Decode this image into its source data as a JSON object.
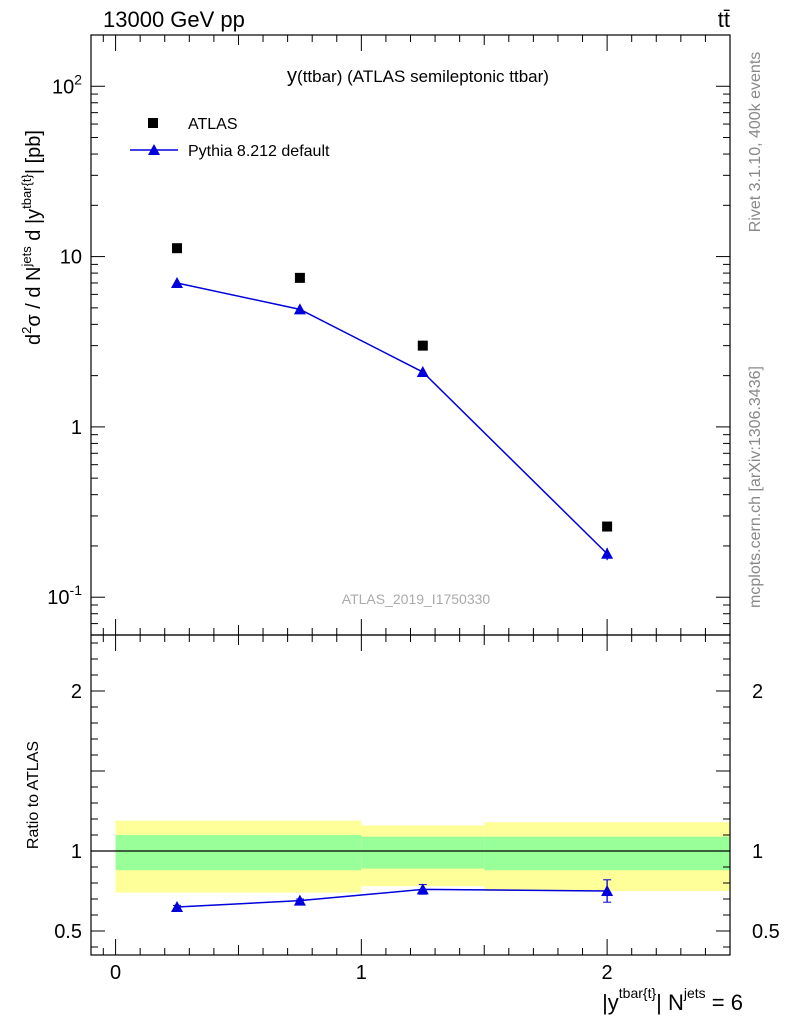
{
  "header": {
    "energy_label": "13000 GeV pp",
    "process_label": "tt̄"
  },
  "side_text": {
    "rivet": "Rivet 3.1.10,  400k events",
    "mcplots": "mcplots.cern.ch [arXiv:1306.3436]"
  },
  "colors": {
    "pythia": "#0000dd",
    "band_inner": "#99ff99",
    "band_outer": "#ffff99",
    "data_marker": "#000000"
  },
  "chart_data": [
    {
      "type": "scatter",
      "panel": "main",
      "title": "y(ttbar) (ATLAS semileptonic ttbar)",
      "watermark": "ATLAS_2019_I1750330",
      "ylabel": "d²σ / d N^jets d |y^tbar{t}| [pb]",
      "yscale": "log",
      "ylim": [
        0.06,
        200
      ],
      "xlim": [
        -0.1,
        2.5
      ],
      "ytick_labels": [
        {
          "value": 0.1,
          "label": "10^-1"
        },
        {
          "value": 1,
          "label": "1"
        },
        {
          "value": 10,
          "label": "10"
        },
        {
          "value": 100,
          "label": "10^2"
        }
      ],
      "legend": {
        "placement": "top-left",
        "entries": [
          "ATLAS",
          "Pythia 8.212 default"
        ]
      },
      "series": [
        {
          "name": "ATLAS",
          "style": "square-marker",
          "x": [
            0.25,
            0.75,
            1.25,
            2.0
          ],
          "y": [
            11.2,
            7.5,
            3.0,
            0.26
          ]
        },
        {
          "name": "Pythia 8.212 default",
          "style": "triangle-line",
          "x": [
            0.25,
            0.75,
            1.25,
            2.0
          ],
          "y": [
            7.0,
            4.9,
            2.1,
            0.18
          ],
          "yerr": [
            0.1,
            0.1,
            0.05,
            0.015
          ]
        }
      ]
    },
    {
      "type": "line",
      "panel": "ratio",
      "ylabel": "Ratio to ATLAS",
      "xlabel": "|y^tbar{t}| N^jets = 6",
      "ylim": [
        0.35,
        2.35
      ],
      "xlim": [
        -0.1,
        2.5
      ],
      "xtick_labels": [
        {
          "value": 0,
          "label": "0"
        },
        {
          "value": 1,
          "label": "1"
        },
        {
          "value": 2,
          "label": "2"
        }
      ],
      "ytick_labels": [
        {
          "value": 0.5,
          "label": "0.5"
        },
        {
          "value": 1,
          "label": "1"
        },
        {
          "value": 2,
          "label": "2"
        }
      ],
      "reference_line": 1,
      "bands": [
        {
          "x0": 0,
          "x1": 1,
          "inner": [
            0.88,
            1.1
          ],
          "outer": [
            0.74,
            1.19
          ]
        },
        {
          "x0": 1,
          "x1": 1.5,
          "inner": [
            0.89,
            1.09
          ],
          "outer": [
            0.78,
            1.16
          ]
        },
        {
          "x0": 1.5,
          "x1": 2.5,
          "inner": [
            0.88,
            1.09
          ],
          "outer": [
            0.75,
            1.18
          ]
        }
      ],
      "series": [
        {
          "name": "Pythia 8.212 default",
          "x": [
            0.25,
            0.75,
            1.25,
            2.0
          ],
          "y": [
            0.65,
            0.69,
            0.76,
            0.75
          ],
          "yerr": [
            0.01,
            0.01,
            0.03,
            0.07
          ]
        }
      ]
    }
  ]
}
